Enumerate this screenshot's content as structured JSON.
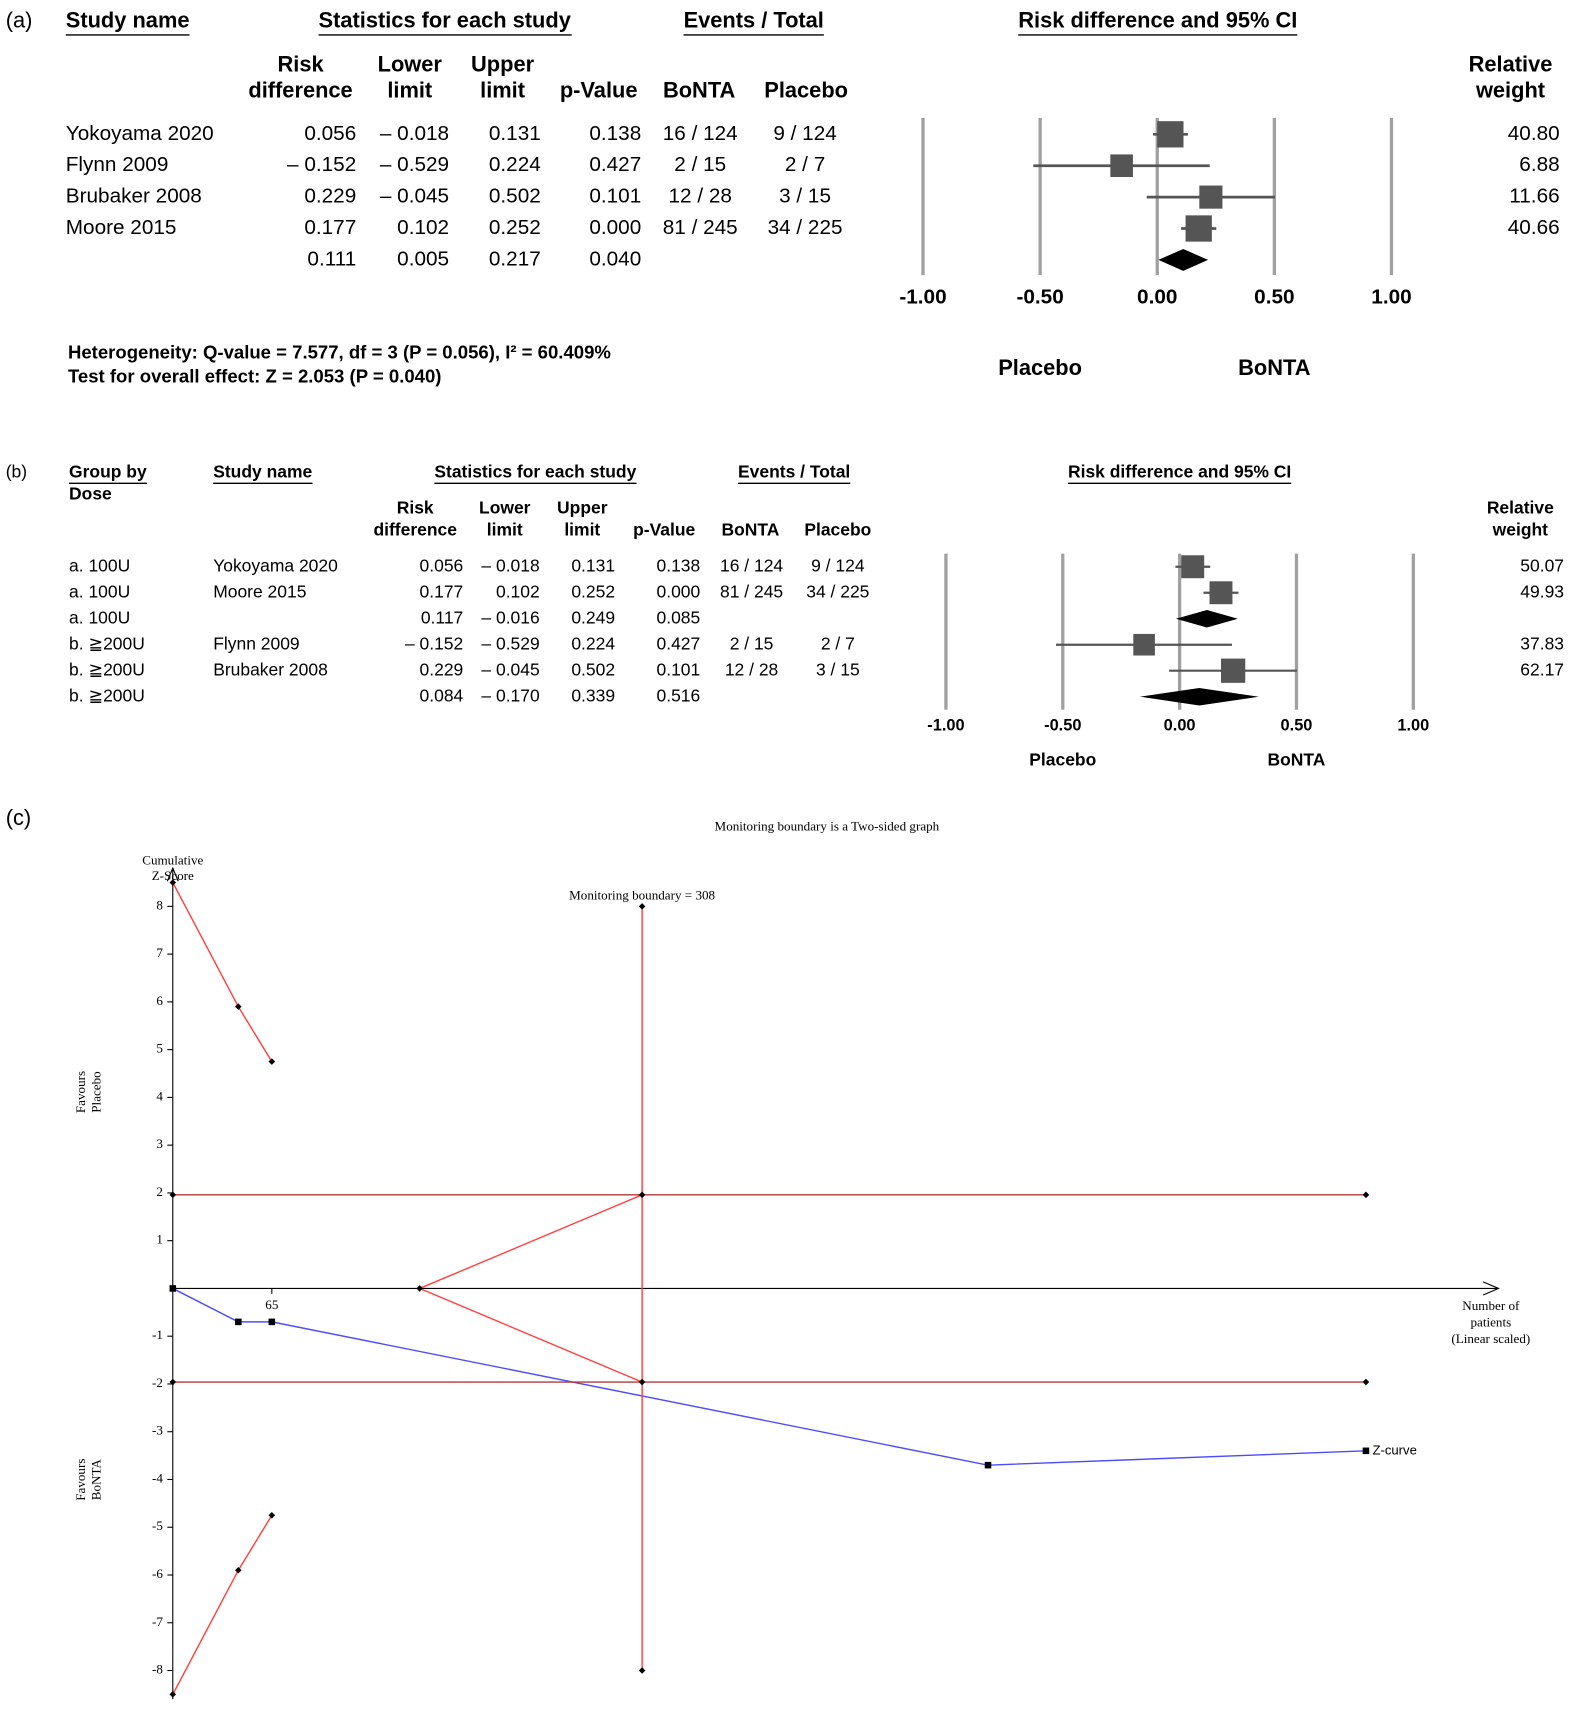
{
  "chart_data": [
    {
      "type": "forest",
      "panel": "(a)",
      "headers": {
        "study": "Study name",
        "stats": "Statistics for each study",
        "events": "Events / Total",
        "plot": "Risk difference and 95% CI"
      },
      "columns": {
        "rd": [
          "Risk",
          "difference"
        ],
        "lower": [
          "Lower",
          "limit"
        ],
        "upper": [
          "Upper",
          "limit"
        ],
        "p": [
          "p-Value"
        ],
        "bonta": [
          "BoNTA"
        ],
        "placebo": [
          "Placebo"
        ],
        "weight": [
          "Relative",
          "weight"
        ]
      },
      "rows": [
        {
          "study": "Yokoyama 2020",
          "rd": 0.056,
          "lower": {
            "value": -0.018,
            "label": "– 0.018"
          },
          "upper": 0.131,
          "p": 0.138,
          "bonta": "16 / 124",
          "placebo": "9 / 124",
          "weight": {
            "value": 40.8,
            "label": "40.80"
          }
        },
        {
          "study": "Flynn 2009",
          "rd": {
            "value": -0.152,
            "label": "– 0.152"
          },
          "lower": {
            "value": -0.529,
            "label": "– 0.529"
          },
          "upper": 0.224,
          "p": 0.427,
          "bonta": "2 / 15",
          "placebo": "2 / 7",
          "weight": 6.88
        },
        {
          "study": "Brubaker 2008",
          "rd": 0.229,
          "lower": {
            "value": -0.045,
            "label": "– 0.045"
          },
          "upper": 0.502,
          "p": 0.101,
          "bonta": "12 / 28",
          "placebo": "3 / 15",
          "weight": 11.66
        },
        {
          "study": "Moore 2015",
          "rd": 0.177,
          "lower": 0.102,
          "upper": 0.252,
          "p": {
            "value": 0,
            "label": "0.000"
          },
          "bonta": "81 / 245",
          "placebo": "34 / 225",
          "weight": 40.66
        },
        {
          "rd": 0.111,
          "lower": 0.005,
          "upper": 0.217,
          "p": {
            "value": 0.04,
            "label": "0.040"
          }
        }
      ],
      "xlim": [
        -1,
        1
      ],
      "xticks": [
        {
          "value": -1,
          "label": "-1.00"
        },
        {
          "value": -0.5,
          "label": "-0.50"
        },
        {
          "value": 0,
          "label": "0.00"
        },
        {
          "value": 0.5,
          "label": "0.50"
        },
        {
          "value": 1,
          "label": "1.00"
        }
      ],
      "favours": [
        "Placebo",
        "BoNTA"
      ],
      "notes": [
        "Heterogeneity: Q-value = 7.577, df = 3 (P = 0.056), I² = 60.409%",
        "Test for overall effect: Z = 2.053 (P = 0.040)"
      ],
      "color": "#555555",
      "summary_color": "#000000",
      "grid_color": "#a0a0a0"
    },
    {
      "type": "forest",
      "panel": "(b)",
      "headers": {
        "group": [
          "Group by",
          "Dose"
        ],
        "study": "Study name",
        "stats": "Statistics for each study",
        "events": "Events / Total",
        "plot": "Risk difference and 95% CI"
      },
      "columns": {
        "rd": [
          "Risk",
          "difference"
        ],
        "lower": [
          "Lower",
          "limit"
        ],
        "upper": [
          "Upper",
          "limit"
        ],
        "p": [
          "p-Value"
        ],
        "bonta": [
          "BoNTA"
        ],
        "placebo": [
          "Placebo"
        ],
        "weight": [
          "Relative",
          "weight"
        ]
      },
      "rows": [
        {
          "group": "a. 100U",
          "study": "Yokoyama 2020",
          "rd": 0.056,
          "lower": {
            "value": -0.018,
            "label": "– 0.018"
          },
          "upper": 0.131,
          "p": 0.138,
          "bonta": "16 / 124",
          "placebo": "9 / 124",
          "weight": 50.07
        },
        {
          "group": "a. 100U",
          "study": "Moore 2015",
          "rd": 0.177,
          "lower": 0.102,
          "upper": 0.252,
          "p": {
            "value": 0,
            "label": "0.000"
          },
          "bonta": "81 / 245",
          "placebo": "34 / 225",
          "weight": 49.93
        },
        {
          "group": "a. 100U",
          "rd": 0.117,
          "lower": {
            "value": -0.016,
            "label": "– 0.016"
          },
          "upper": 0.249,
          "p": 0.085
        },
        {
          "group": "b. ≧200U",
          "study": "Flynn 2009",
          "rd": {
            "value": -0.152,
            "label": "– 0.152"
          },
          "lower": {
            "value": -0.529,
            "label": "– 0.529"
          },
          "upper": 0.224,
          "p": 0.427,
          "bonta": "2 / 15",
          "placebo": "2 / 7",
          "weight": 37.83
        },
        {
          "group": "b. ≧200U",
          "study": "Brubaker 2008",
          "rd": 0.229,
          "lower": {
            "value": -0.045,
            "label": "– 0.045"
          },
          "upper": 0.502,
          "p": 0.101,
          "bonta": "12 / 28",
          "placebo": "3 / 15",
          "weight": 62.17
        },
        {
          "group": "b. ≧200U",
          "rd": 0.084,
          "lower": {
            "value": -0.17,
            "label": "– 0.170"
          },
          "upper": 0.339,
          "p": 0.516
        }
      ],
      "xlim": [
        -1,
        1
      ],
      "xticks": [
        {
          "value": -1,
          "label": "-1.00"
        },
        {
          "value": -0.5,
          "label": "-0.50"
        },
        {
          "value": 0,
          "label": "0.00"
        },
        {
          "value": 0.5,
          "label": "0.50"
        },
        {
          "value": 1,
          "label": "1.00"
        }
      ],
      "favours": [
        "Placebo",
        "BoNTA"
      ],
      "color": "#555555",
      "summary_color": "#000000",
      "grid_color": "#a0a0a0"
    },
    {
      "type": "line",
      "panel": "(c)",
      "title": "Monitoring boundary is a Two-sided graph",
      "y_label": [
        "Cumulative",
        "Z-Score"
      ],
      "x_label": [
        "Number of",
        "patients",
        "(Linear scaled)"
      ],
      "favours": [
        [
          "Favours",
          "Placebo"
        ],
        [
          "Favours",
          "BoNTA"
        ]
      ],
      "annotation": "Monitoring boundary = 308",
      "xlim": [
        0,
        870
      ],
      "ylim": [
        -8.6,
        8.8
      ],
      "xticks": [
        65
      ],
      "yticks": [
        -8,
        -7,
        -6,
        -5,
        -4,
        -3,
        -2,
        -1,
        1,
        2,
        3,
        4,
        5,
        6,
        7,
        8
      ],
      "series": [
        {
          "name": "Z-curve",
          "color": "#4d4dff",
          "marker": "square",
          "x": [
            0,
            43,
            65,
            535,
            783
          ],
          "y": [
            0,
            -0.7,
            -0.7,
            -3.7,
            -3.4
          ]
        },
        {
          "color": "#ff4040",
          "marker": "diamond",
          "x": [
            0,
            43,
            65
          ],
          "y": [
            8.5,
            5.9,
            4.75
          ]
        },
        {
          "color": "#ff4040",
          "marker": "diamond",
          "x": [
            0,
            43,
            65
          ],
          "y": [
            -8.5,
            -5.9,
            -4.75
          ]
        },
        {
          "color": "#b03a3a",
          "marker": "diamond",
          "x": [
            0,
            783
          ],
          "y": [
            1.96,
            1.96
          ]
        },
        {
          "color": "#b03a3a",
          "marker": "diamond",
          "x": [
            0,
            783
          ],
          "y": [
            -1.96,
            -1.96
          ]
        },
        {
          "color": "#ff4040",
          "marker": "diamond",
          "x": [
            308,
            162,
            308
          ],
          "y": [
            1.96,
            0,
            -1.96
          ]
        },
        {
          "color": "#ff4040",
          "marker": "diamond",
          "x": [
            308,
            308
          ],
          "y": [
            8,
            -8
          ]
        }
      ]
    }
  ]
}
